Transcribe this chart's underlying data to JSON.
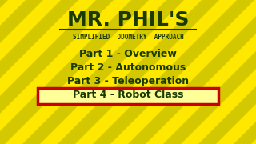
{
  "bg_yellow": "#FFE800",
  "stripe_color": "#D4C800",
  "text_dark": "#1A3A00",
  "title": "MR. PHIL'S",
  "subtitle": "SIMPLIFIED  ODOMETRY  APPROACH",
  "parts": [
    "Part 1 - Overview",
    "Part 2 - Autonomous",
    "Part 3 - Teleoperation",
    "Part 4 - Robot Class"
  ],
  "highlight_index": 3,
  "highlight_bg": "#FFFF99",
  "highlight_border": "#CC0000",
  "figsize": [
    3.2,
    1.8
  ],
  "dpi": 100
}
